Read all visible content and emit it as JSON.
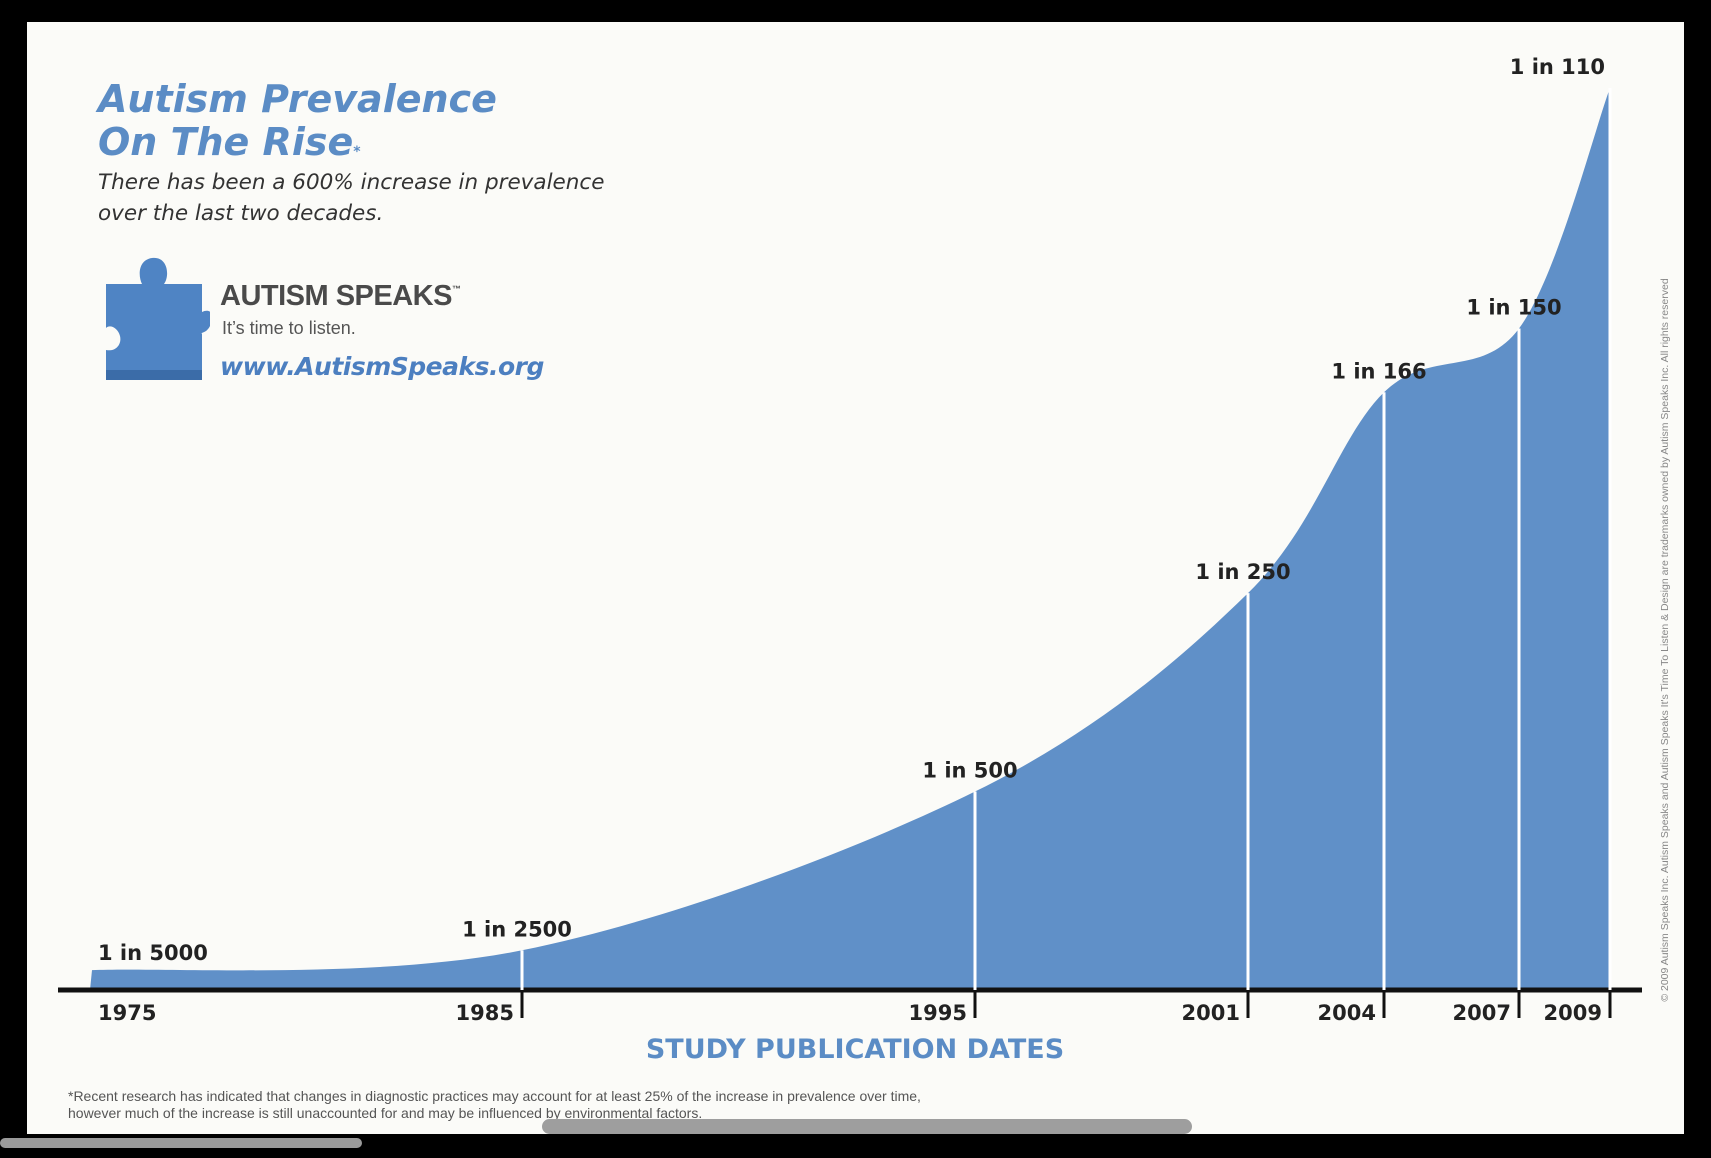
{
  "header": {
    "title_line1": "Autism Prevalence",
    "title_line2": "On The Rise",
    "title_mark": "*",
    "subtitle": "There has been a 600% increase in prevalence over the last two decades."
  },
  "logo": {
    "name": "AUTISM SPEAKS",
    "trademark": "™",
    "tagline": "It’s time to listen.",
    "url": "www.AutismSpeaks.org",
    "icon": "puzzle-piece-icon"
  },
  "chart_data": {
    "type": "area",
    "xlabel": "STUDY PUBLICATION DATES",
    "ylabel": "",
    "x": [
      1975,
      1985,
      1995,
      2001,
      2004,
      2007,
      2009
    ],
    "tick_labels": [
      "1975",
      "1985",
      "1995",
      "2001",
      "2004",
      "2007",
      "2009"
    ],
    "prevalence_one_in": [
      5000,
      2500,
      500,
      250,
      166,
      150,
      110
    ],
    "point_labels": [
      "1 in 5000",
      "1 in 2500",
      "1 in 500",
      "1 in 250",
      "1 in 166",
      "1 in 150",
      "1 in 110"
    ],
    "y_scale": "reciprocal (cases per person)",
    "fill_color": "#6090c8",
    "grid": false,
    "legend": "none"
  },
  "footnote": "*Recent research has indicated that changes in diagnostic practices may account for at least 25% of the increase in prevalence over time, however much of the increase is still unaccounted for and may be influenced by environmental factors.",
  "copyright": "© 2009 Autism Speaks Inc. Autism Speaks and Autism Speaks It's Time To Listen & Design are trademarks owned by Autism Speaks Inc. All rights reserved"
}
